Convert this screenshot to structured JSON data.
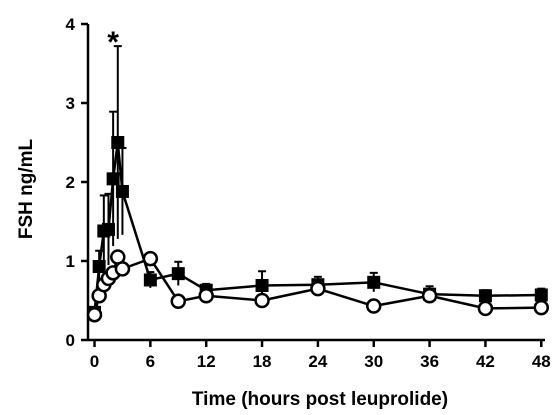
{
  "chart_data": {
    "type": "line",
    "title": "",
    "xlabel": "Time (hours post leuprolide)",
    "ylabel": "FSH ng/mL",
    "xlim": [
      -0.7,
      48.4
    ],
    "ylim": [
      0,
      4
    ],
    "x_ticks": [
      0,
      6,
      12,
      18,
      24,
      30,
      36,
      42,
      48
    ],
    "y_ticks": [
      0,
      1,
      2,
      3,
      4
    ],
    "grid": false,
    "legend": "none",
    "annotations": [
      {
        "text": "*",
        "x": 2.0,
        "y": 3.9
      }
    ],
    "series": [
      {
        "marker": "filled-square",
        "color": "#000000",
        "points": [
          {
            "x": 0,
            "y": 0.35,
            "err": 0.06
          },
          {
            "x": 0.5,
            "y": 0.93,
            "err": 0.2
          },
          {
            "x": 1.0,
            "y": 1.38,
            "err": 0.45
          },
          {
            "x": 1.5,
            "y": 1.4,
            "err": 0.45
          },
          {
            "x": 2.0,
            "y": 2.04,
            "err": 0.85
          },
          {
            "x": 2.5,
            "y": 2.5,
            "err": 1.22
          },
          {
            "x": 3.0,
            "y": 1.88,
            "err": 0.55
          },
          {
            "x": 6,
            "y": 0.76,
            "err": 0.1
          },
          {
            "x": 9,
            "y": 0.84,
            "err": 0.15
          },
          {
            "x": 12,
            "y": 0.63,
            "err": 0.08
          },
          {
            "x": 18,
            "y": 0.69,
            "err": 0.18
          },
          {
            "x": 24,
            "y": 0.7,
            "err": 0.1
          },
          {
            "x": 30,
            "y": 0.73,
            "err": 0.12
          },
          {
            "x": 36,
            "y": 0.58,
            "err": 0.1
          },
          {
            "x": 42,
            "y": 0.56,
            "err": 0.07
          },
          {
            "x": 48,
            "y": 0.57,
            "err": 0.08
          }
        ]
      },
      {
        "marker": "open-circle",
        "color": "#000000",
        "points": [
          {
            "x": 0,
            "y": 0.32,
            "err": 0.05
          },
          {
            "x": 0.5,
            "y": 0.56,
            "err": 0.05
          },
          {
            "x": 1.0,
            "y": 0.7,
            "err": 0.05
          },
          {
            "x": 1.5,
            "y": 0.78,
            "err": 0.05
          },
          {
            "x": 2.0,
            "y": 0.85,
            "err": 0.05
          },
          {
            "x": 2.5,
            "y": 1.05,
            "err": 0.05
          },
          {
            "x": 3.0,
            "y": 0.9,
            "err": 0.05
          },
          {
            "x": 6,
            "y": 1.03,
            "err": 0.05
          },
          {
            "x": 9,
            "y": 0.49,
            "err": 0.05
          },
          {
            "x": 12,
            "y": 0.56,
            "err": 0.05
          },
          {
            "x": 18,
            "y": 0.5,
            "err": 0.05
          },
          {
            "x": 24,
            "y": 0.65,
            "err": 0.05
          },
          {
            "x": 30,
            "y": 0.43,
            "err": 0.05
          },
          {
            "x": 36,
            "y": 0.56,
            "err": 0.05
          },
          {
            "x": 42,
            "y": 0.4,
            "err": 0.05
          },
          {
            "x": 48,
            "y": 0.41,
            "err": 0.05
          }
        ]
      }
    ]
  }
}
